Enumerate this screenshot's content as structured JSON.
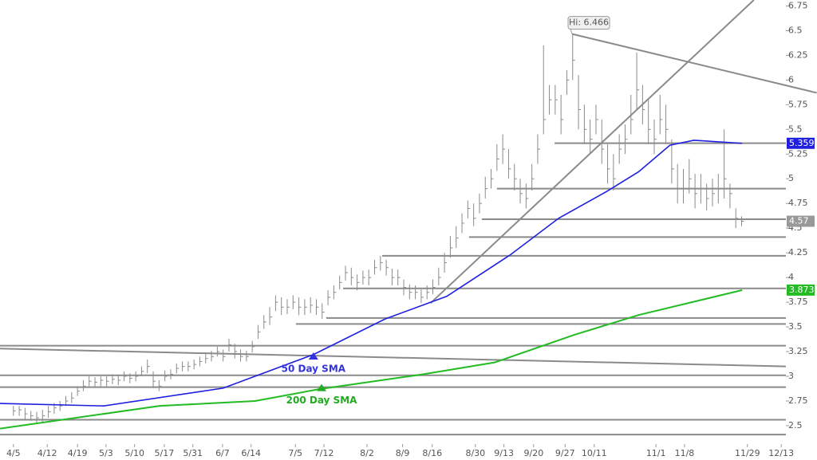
{
  "chart_data": {
    "type": "ohlc",
    "xlim": [
      -2.3,
      132.6
    ],
    "ylim": [
      2.33,
      6.81
    ],
    "yticks": [
      2.5,
      2.75,
      3,
      3.25,
      3.5,
      3.75,
      4,
      4.25,
      4.5,
      4.75,
      5,
      5.25,
      5.5,
      5.75,
      6,
      6.25,
      6.5,
      6.75
    ],
    "xticks": [
      {
        "value": 0,
        "label": "4/5"
      },
      {
        "value": 5.8,
        "label": "4/12"
      },
      {
        "value": 11,
        "label": "4/19"
      },
      {
        "value": 15.9,
        "label": "5/3"
      },
      {
        "value": 20.8,
        "label": "5/10"
      },
      {
        "value": 25.9,
        "label": "5/17"
      },
      {
        "value": 30.8,
        "label": "5/31"
      },
      {
        "value": 35.9,
        "label": "6/7"
      },
      {
        "value": 40.8,
        "label": "6/14"
      },
      {
        "value": 48.4,
        "label": "7/5"
      },
      {
        "value": 53.3,
        "label": "7/12"
      },
      {
        "value": 60.7,
        "label": "8/2"
      },
      {
        "value": 66.8,
        "label": "8/9"
      },
      {
        "value": 71.9,
        "label": "8/16"
      },
      {
        "value": 79.3,
        "label": "8/30"
      },
      {
        "value": 84.2,
        "label": "9/13"
      },
      {
        "value": 89.3,
        "label": "9/20"
      },
      {
        "value": 94.7,
        "label": "9/27"
      },
      {
        "value": 99.7,
        "label": "10/11"
      },
      {
        "value": 110.3,
        "label": "11/1"
      },
      {
        "value": 115.2,
        "label": "11/8"
      },
      {
        "value": 126,
        "label": "11/29"
      },
      {
        "value": 131.8,
        "label": "12/13"
      }
    ],
    "bar_color": "#8a8a8a",
    "high": [
      2.7,
      2.7,
      2.68,
      2.65,
      2.64,
      2.66,
      2.7,
      2.73,
      2.75,
      2.8,
      2.84,
      2.9,
      2.96,
      3.0,
      2.99,
      3.0,
      3.0,
      3.02,
      3.01,
      3.05,
      3.03,
      3.05,
      3.1,
      3.17,
      3.05,
      2.96,
      3.06,
      3.07,
      3.13,
      3.15,
      3.15,
      3.17,
      3.2,
      3.23,
      3.26,
      3.3,
      3.27,
      3.38,
      3.33,
      3.27,
      3.26,
      3.36,
      3.52,
      3.62,
      3.7,
      3.82,
      3.8,
      3.78,
      3.82,
      3.8,
      3.78,
      3.8,
      3.78,
      3.74,
      3.87,
      3.92,
      4.02,
      4.12,
      4.1,
      4.03,
      4.07,
      4.08,
      4.18,
      4.22,
      4.18,
      4.09,
      4.08,
      3.98,
      3.93,
      3.92,
      3.88,
      3.92,
      3.98,
      4.1,
      4.25,
      4.42,
      4.52,
      4.65,
      4.78,
      4.75,
      4.85,
      5.02,
      5.1,
      5.35,
      5.45,
      5.3,
      5.15,
      5.0,
      4.95,
      5.15,
      5.45,
      6.35,
      5.95,
      5.95,
      5.85,
      6.1,
      6.466,
      6.05,
      5.75,
      5.6,
      5.75,
      5.6,
      5.35,
      5.25,
      5.45,
      5.55,
      5.85,
      6.28,
      5.95,
      5.8,
      5.6,
      5.85,
      5.75,
      5.4,
      5.15,
      5.1,
      5.2,
      5.05,
      5.05,
      4.95,
      5.0,
      5.05,
      5.5,
      4.95,
      4.7,
      4.62
    ],
    "low": [
      2.6,
      2.6,
      2.56,
      2.55,
      2.52,
      2.54,
      2.58,
      2.62,
      2.65,
      2.7,
      2.73,
      2.8,
      2.85,
      2.9,
      2.89,
      2.9,
      2.9,
      2.92,
      2.91,
      2.95,
      2.93,
      2.95,
      3.0,
      3.03,
      2.88,
      2.85,
      2.95,
      2.97,
      3.03,
      3.05,
      3.05,
      3.07,
      3.1,
      3.13,
      3.15,
      3.2,
      3.15,
      3.25,
      3.18,
      3.15,
      3.15,
      3.24,
      3.38,
      3.48,
      3.52,
      3.66,
      3.62,
      3.63,
      3.68,
      3.62,
      3.62,
      3.64,
      3.62,
      3.58,
      3.72,
      3.78,
      3.88,
      3.97,
      3.92,
      3.87,
      3.93,
      3.92,
      4.03,
      4.07,
      4.02,
      3.92,
      3.92,
      3.82,
      3.78,
      3.78,
      3.74,
      3.78,
      3.83,
      3.92,
      4.05,
      4.2,
      4.3,
      4.45,
      4.6,
      4.52,
      4.65,
      4.8,
      4.9,
      5.08,
      5.15,
      5.0,
      4.88,
      4.75,
      4.7,
      4.88,
      5.15,
      5.45,
      5.65,
      5.65,
      5.45,
      5.85,
      6.0,
      5.5,
      5.35,
      5.25,
      5.45,
      5.15,
      4.95,
      4.88,
      5.15,
      5.25,
      5.45,
      5.7,
      5.55,
      5.35,
      5.25,
      5.45,
      5.35,
      4.95,
      4.75,
      4.75,
      4.85,
      4.7,
      4.75,
      4.68,
      4.72,
      4.75,
      4.8,
      4.7,
      4.5,
      4.52
    ],
    "close": [
      2.65,
      2.66,
      2.62,
      2.6,
      2.58,
      2.6,
      2.64,
      2.68,
      2.7,
      2.75,
      2.78,
      2.85,
      2.9,
      2.95,
      2.94,
      2.96,
      2.95,
      2.97,
      2.96,
      3.0,
      2.98,
      3.0,
      3.05,
      3.1,
      2.95,
      2.9,
      3.0,
      3.02,
      3.08,
      3.1,
      3.1,
      3.12,
      3.15,
      3.18,
      3.2,
      3.25,
      3.2,
      3.32,
      3.25,
      3.2,
      3.2,
      3.3,
      3.45,
      3.55,
      3.6,
      3.75,
      3.7,
      3.7,
      3.75,
      3.7,
      3.7,
      3.72,
      3.7,
      3.65,
      3.8,
      3.85,
      3.95,
      4.05,
      4.0,
      3.95,
      4.0,
      4.0,
      4.1,
      4.15,
      4.1,
      4.0,
      4.0,
      3.9,
      3.85,
      3.85,
      3.8,
      3.85,
      3.9,
      4.0,
      4.15,
      4.3,
      4.4,
      4.55,
      4.7,
      4.6,
      4.75,
      4.9,
      5.0,
      5.2,
      5.3,
      5.1,
      5.0,
      4.85,
      4.8,
      5.0,
      5.3,
      5.6,
      5.8,
      5.8,
      5.6,
      6.0,
      6.2,
      5.7,
      5.5,
      5.4,
      5.6,
      5.3,
      5.1,
      5.0,
      5.3,
      5.4,
      5.6,
      5.9,
      5.7,
      5.5,
      5.4,
      5.6,
      5.5,
      5.1,
      4.9,
      4.9,
      5.0,
      4.85,
      4.9,
      4.8,
      4.85,
      4.9,
      5.0,
      4.85,
      4.6,
      4.57
    ],
    "series": [
      {
        "color": "#1f1fe0",
        "x": [
          -2.3,
          15.5,
          36,
          51.5,
          63.8,
          74.4,
          85.3,
          93.6,
          101.8,
          107.3,
          112.7,
          116.8,
          125.1
        ],
        "values": [
          2.725,
          2.7,
          2.88,
          3.22,
          3.58,
          3.81,
          4.23,
          4.6,
          4.87,
          5.07,
          5.34,
          5.39,
          5.359
        ]
      },
      {
        "color": "#22bb22",
        "x": [
          -2.3,
          25.1,
          41.5,
          52.5,
          70.3,
          82.6,
          96.3,
          107.3,
          125.1
        ],
        "values": [
          2.47,
          2.7,
          2.75,
          2.87,
          3.02,
          3.14,
          3.42,
          3.62,
          3.873
        ]
      }
    ],
    "levels": [
      {
        "value": 5.36,
        "start": 92.9
      },
      {
        "value": 4.9,
        "start": 83
      },
      {
        "value": 4.59,
        "start": 80.4
      },
      {
        "value": 4.41,
        "start": 78.2
      },
      {
        "value": 4.22,
        "start": 63.3
      },
      {
        "value": 3.89,
        "start": 56.6
      },
      {
        "value": 3.59,
        "start": 53.7
      },
      {
        "value": 3.53,
        "start": 48.5
      },
      {
        "value": 3.31,
        "start": -2.3
      },
      {
        "value": 3.01,
        "start": -2.3
      },
      {
        "value": 2.89,
        "start": -2.3
      },
      {
        "value": 2.56,
        "start": -2.3
      },
      {
        "value": 2.41,
        "start": -2.3
      }
    ],
    "trendlines": [
      {
        "x": [
          95.9,
          137.9
        ],
        "values": [
          6.466,
          5.87
        ]
      },
      {
        "x": [
          -2.3,
          132.6
        ],
        "values": [
          3.28,
          3.1
        ]
      },
      {
        "x": [
          71.6,
          127.1
        ],
        "values": [
          3.74,
          6.81
        ]
      }
    ],
    "line_color": "#8a8a8a",
    "annotations": [
      {
        "text": "50 Day SMA",
        "x": 51.5,
        "y": 3.21,
        "color": "#3333dd"
      },
      {
        "text": "200 Day SMA",
        "x": 52.9,
        "y": 2.89,
        "color": "#22aa22"
      }
    ],
    "high_label": {
      "text": "Hi: 6.466",
      "x": 95.9,
      "y": 6.466
    },
    "price_labels": [
      {
        "value": 5.359,
        "color": "#1f1fe0"
      },
      {
        "value": 4.57,
        "color": "#999999"
      },
      {
        "value": 3.873,
        "color": "#22bb22"
      }
    ]
  }
}
